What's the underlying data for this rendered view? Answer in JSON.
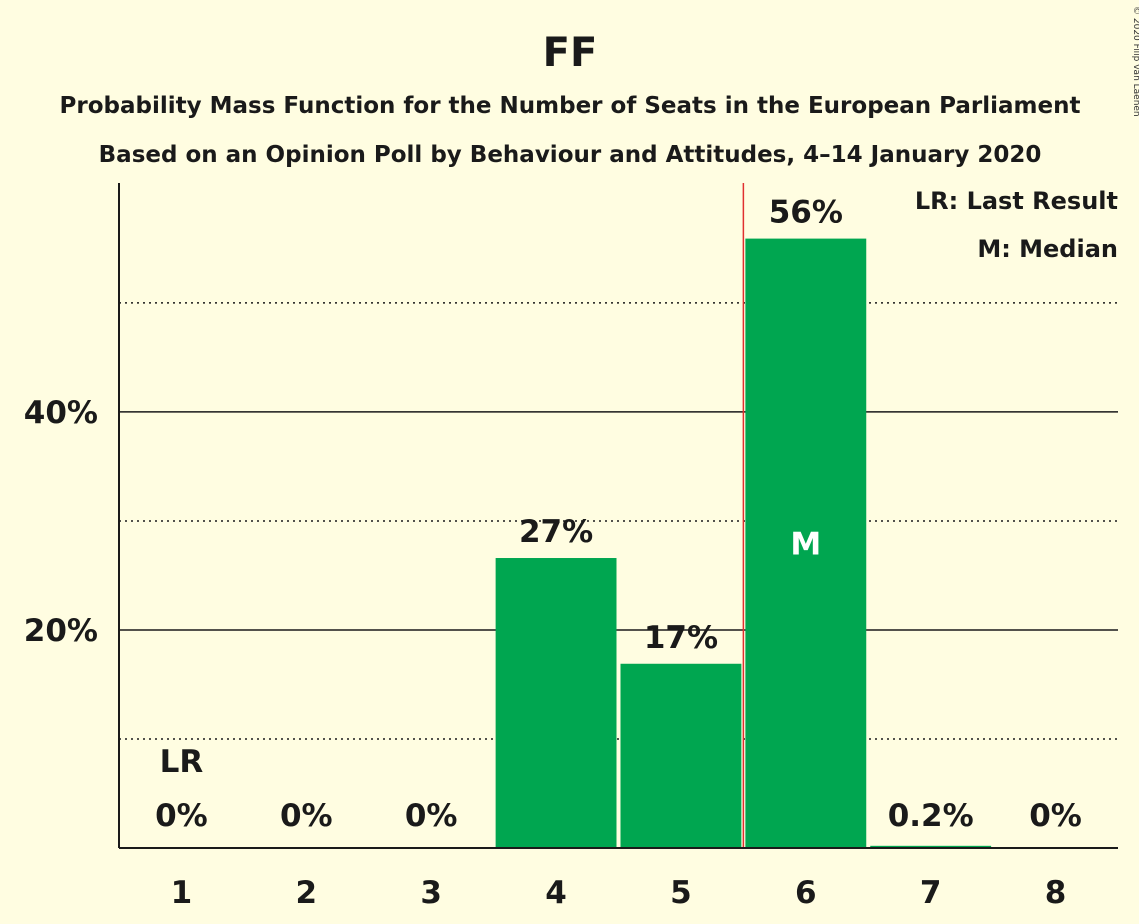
{
  "chart_data": {
    "type": "bar",
    "title": "FF",
    "subtitle": "Probability Mass Function for the Number of Seats in the European Parliament",
    "subtitle2": "Based on an Opinion Poll by Behaviour and Attitudes, 4–14 January 2020",
    "categories": [
      "1",
      "2",
      "3",
      "4",
      "5",
      "6",
      "7",
      "8"
    ],
    "values": [
      0,
      0,
      0,
      26.6,
      16.9,
      55.9,
      0.2,
      0
    ],
    "value_labels": [
      "0%",
      "0%",
      "0%",
      "27%",
      "17%",
      "56%",
      "0.2%",
      "0%"
    ],
    "ylim": [
      0,
      61
    ],
    "yticks": [
      20,
      40
    ],
    "ytick_labels": [
      "20%",
      "40%"
    ],
    "minor_gridlines": [
      10,
      30,
      50
    ],
    "last_result": {
      "category": "1",
      "label": "LR"
    },
    "median": {
      "category": "6",
      "label": "M"
    },
    "bar_color": "#00a650",
    "median_line_color": "#e03030",
    "legend": [
      "LR: Last Result",
      "M: Median"
    ],
    "legend_position": "top-right",
    "copyright": "© 2020 Filip van Laenen"
  }
}
